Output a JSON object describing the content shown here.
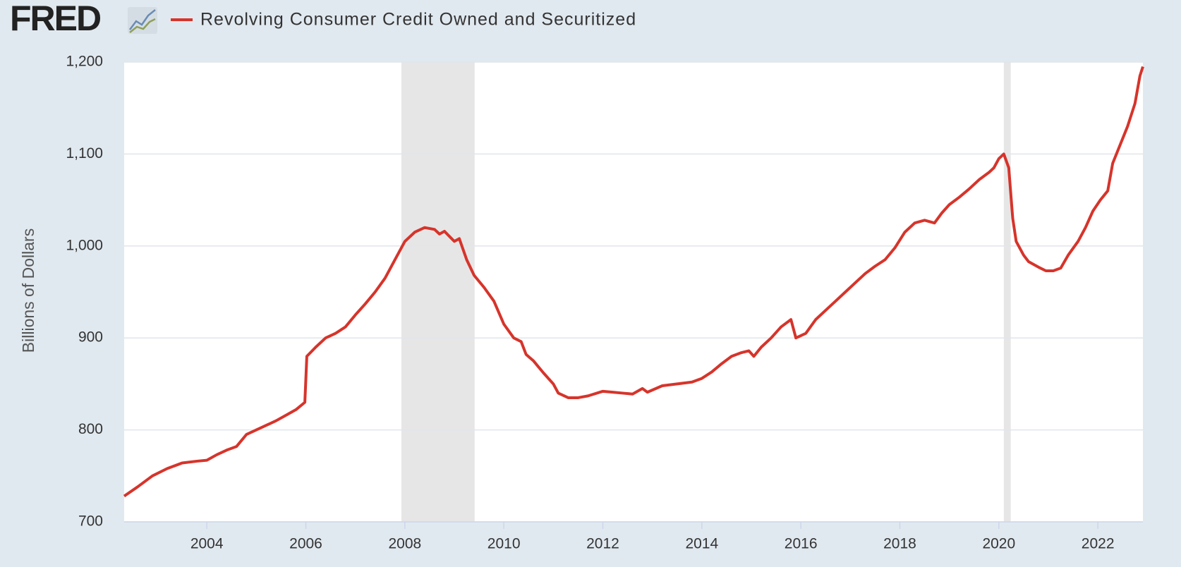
{
  "logo": "FRED",
  "chart_data": {
    "type": "line",
    "y_label": "Billions of Dollars",
    "x": [
      2002.33,
      2002.6,
      2002.9,
      2003.2,
      2003.5,
      2003.8,
      2004.0,
      2004.2,
      2004.4,
      2004.6,
      2004.8,
      2005.0,
      2005.2,
      2005.4,
      2005.6,
      2005.8,
      2005.98,
      2006.02,
      2006.2,
      2006.4,
      2006.6,
      2006.8,
      2007.0,
      2007.2,
      2007.4,
      2007.6,
      2007.8,
      2008.0,
      2008.2,
      2008.4,
      2008.6,
      2008.7,
      2008.8,
      2009.0,
      2009.1,
      2009.25,
      2009.4,
      2009.6,
      2009.8,
      2010.0,
      2010.2,
      2010.35,
      2010.45,
      2010.6,
      2010.8,
      2011.0,
      2011.1,
      2011.3,
      2011.5,
      2011.7,
      2012.0,
      2012.2,
      2012.4,
      2012.6,
      2012.8,
      2012.9,
      2013.2,
      2013.5,
      2013.8,
      2014.0,
      2014.2,
      2014.4,
      2014.6,
      2014.8,
      2014.95,
      2015.05,
      2015.2,
      2015.4,
      2015.6,
      2015.8,
      2015.9,
      2016.1,
      2016.3,
      2016.5,
      2016.7,
      2016.9,
      2017.1,
      2017.3,
      2017.5,
      2017.7,
      2017.9,
      2018.1,
      2018.3,
      2018.5,
      2018.7,
      2018.85,
      2019.0,
      2019.2,
      2019.4,
      2019.6,
      2019.8,
      2019.9,
      2020.0,
      2020.1,
      2020.2,
      2020.28,
      2020.35,
      2020.5,
      2020.6,
      2020.8,
      2020.95,
      2021.1,
      2021.25,
      2021.4,
      2021.6,
      2021.75,
      2021.9,
      2022.05,
      2022.2,
      2022.3,
      2022.45,
      2022.6,
      2022.75,
      2022.85,
      2022.91
    ],
    "series": [
      {
        "name": "Revolving Consumer Credit Owned and Securitized",
        "color": "#d6342b",
        "values": [
          728,
          738,
          750,
          758,
          764,
          766,
          767,
          773,
          778,
          782,
          795,
          800,
          805,
          810,
          816,
          822,
          830,
          880,
          890,
          900,
          905,
          912,
          925,
          937,
          950,
          965,
          985,
          1005,
          1015,
          1020,
          1018,
          1013,
          1016,
          1005,
          1008,
          985,
          968,
          955,
          940,
          915,
          900,
          896,
          882,
          875,
          862,
          850,
          840,
          835,
          835,
          837,
          842,
          841,
          840,
          839,
          845,
          841,
          848,
          850,
          852,
          856,
          863,
          872,
          880,
          884,
          886,
          880,
          890,
          900,
          912,
          920,
          900,
          905,
          920,
          930,
          940,
          950,
          960,
          970,
          978,
          985,
          998,
          1015,
          1025,
          1028,
          1025,
          1036,
          1045,
          1053,
          1062,
          1072,
          1080,
          1085,
          1095,
          1100,
          1085,
          1030,
          1005,
          990,
          983,
          977,
          973,
          973,
          976,
          990,
          1005,
          1020,
          1038,
          1050,
          1060,
          1090,
          1110,
          1130,
          1155,
          1185,
          1195
        ]
      }
    ],
    "xlim": [
      2002.33,
      2022.91
    ],
    "xticks": [
      2004,
      2006,
      2008,
      2010,
      2012,
      2014,
      2016,
      2018,
      2020,
      2022
    ],
    "ylim": [
      700,
      1200
    ],
    "yticks": [
      700,
      800,
      900,
      {
        "value": 1000,
        "label": "1,000"
      },
      {
        "value": 1100,
        "label": "1,100"
      },
      {
        "value": 1200,
        "label": "1,200"
      }
    ],
    "grid": true,
    "recessions": [
      [
        2007.93,
        2009.41
      ],
      [
        2020.1,
        2020.24
      ]
    ],
    "recession_color": "#e6e6e6"
  }
}
